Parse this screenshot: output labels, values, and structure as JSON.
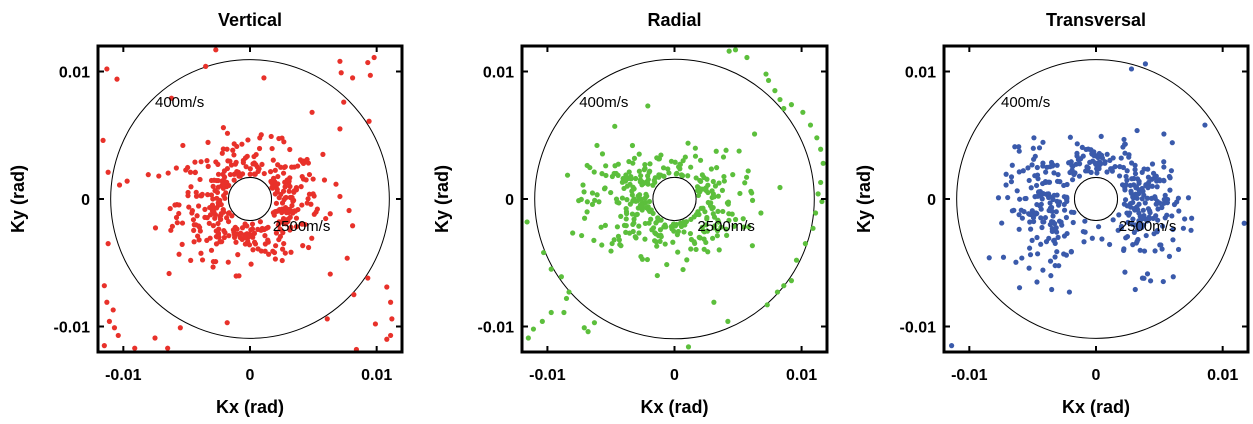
{
  "chart_data": [
    {
      "type": "scatter",
      "title": "Vertical",
      "xlabel": "Kx (rad)",
      "ylabel": "Ky (rad)",
      "xlim": [
        -0.012,
        0.012
      ],
      "ylim": [
        -0.012,
        0.012
      ],
      "xticks": [
        "-0.01",
        "0",
        "0.01"
      ],
      "yticks": [
        "0.01",
        "0",
        "-0.01"
      ],
      "grid": false,
      "color": "#e8312a",
      "circles": [
        {
          "radius": 0.011,
          "label": "400m/s"
        },
        {
          "radius": 0.0017,
          "label": "2500m/s"
        }
      ],
      "points": [
        [
          -0.0113,
          0.0102
        ],
        [
          -0.0105,
          0.0094
        ],
        [
          -0.0062,
          0.0079
        ],
        [
          -0.0035,
          0.0104
        ],
        [
          -0.0027,
          0.0117
        ],
        [
          0.0071,
          0.0108
        ],
        [
          0.0093,
          0.0107
        ],
        [
          0.0098,
          0.0111
        ],
        [
          0.0095,
          0.0097
        ],
        [
          0.0081,
          0.0095
        ],
        [
          0.0072,
          0.0099
        ],
        [
          0.0074,
          0.0076
        ],
        [
          0.0071,
          0.0055
        ],
        [
          0.0094,
          0.0061
        ],
        [
          0.0011,
          0.0095
        ],
        [
          -0.0116,
          0.0046
        ],
        [
          -0.0112,
          0.0021
        ],
        [
          -0.0103,
          0.0011
        ],
        [
          -0.0097,
          0.0014
        ],
        [
          -0.0112,
          -0.0035
        ],
        [
          -0.0115,
          -0.0068
        ],
        [
          -0.0113,
          -0.0081
        ],
        [
          -0.0108,
          -0.0087
        ],
        [
          -0.0111,
          -0.0096
        ],
        [
          -0.0107,
          -0.0101
        ],
        [
          -0.0104,
          -0.0107
        ],
        [
          -0.0115,
          -0.0115
        ],
        [
          -0.0075,
          -0.0109
        ],
        [
          -0.0091,
          -0.0117
        ],
        [
          -0.0065,
          -0.0117
        ],
        [
          -0.0055,
          -0.0101
        ],
        [
          -0.0018,
          -0.0097
        ],
        [
          0.0061,
          -0.0094
        ],
        [
          0.0082,
          -0.0075
        ],
        [
          0.0093,
          -0.0062
        ],
        [
          0.0108,
          -0.0069
        ],
        [
          0.0111,
          -0.0081
        ],
        [
          0.0112,
          -0.0094
        ],
        [
          0.0111,
          -0.0107
        ],
        [
          0.0108,
          -0.011
        ],
        [
          0.0099,
          -0.0098
        ],
        [
          0.0084,
          -0.0118
        ],
        [
          -0.0053,
          0.0042
        ],
        [
          -0.0072,
          0.0018
        ],
        [
          -0.0047,
          0.0021
        ],
        [
          0.0071,
          0.0002
        ],
        [
          0.0081,
          -0.0021
        ],
        [
          0.0018,
          -0.0041
        ],
        [
          -0.0021,
          0.0056
        ],
        [
          0.0049,
          0.0068
        ]
      ],
      "cluster": {
        "n": 380,
        "cx": 0.0,
        "cy": -0.0003,
        "rx": 0.0062,
        "ry": 0.0048,
        "exclusion_radius": 0.0017
      }
    },
    {
      "type": "scatter",
      "title": "Radial",
      "xlabel": "Kx (rad)",
      "ylabel": "Ky (rad)",
      "xlim": [
        -0.012,
        0.012
      ],
      "ylim": [
        -0.012,
        0.012
      ],
      "xticks": [
        "-0.01",
        "0",
        "0.01"
      ],
      "yticks": [
        "0.01",
        "0",
        "-0.01"
      ],
      "grid": false,
      "color": "#5cbf3c",
      "circles": [
        {
          "radius": 0.011,
          "label": "400m/s"
        },
        {
          "radius": 0.0017,
          "label": "2500m/s"
        }
      ],
      "points": [
        [
          0.0043,
          0.0116
        ],
        [
          0.0048,
          0.0117
        ],
        [
          0.0057,
          0.0111
        ],
        [
          0.0072,
          0.0098
        ],
        [
          0.0074,
          0.0093
        ],
        [
          0.0079,
          0.0085
        ],
        [
          0.0083,
          0.0078
        ],
        [
          0.0086,
          0.0071
        ],
        [
          0.0092,
          0.0074
        ],
        [
          0.0101,
          0.0068
        ],
        [
          0.0107,
          0.0058
        ],
        [
          0.0112,
          0.0048
        ],
        [
          0.0115,
          0.0039
        ],
        [
          0.0117,
          0.0028
        ],
        [
          0.0115,
          0.0013
        ],
        [
          0.0113,
          0.0004
        ],
        [
          0.0116,
          -0.0002
        ],
        [
          0.0111,
          -0.0011
        ],
        [
          0.0109,
          -0.0023
        ],
        [
          0.0103,
          -0.0035
        ],
        [
          0.0096,
          -0.0048
        ],
        [
          0.0092,
          -0.0064
        ],
        [
          0.0086,
          -0.0068
        ],
        [
          0.0073,
          -0.0083
        ],
        [
          0.0081,
          -0.0073
        ],
        [
          -0.0116,
          -0.0018
        ],
        [
          -0.0103,
          -0.0042
        ],
        [
          -0.0097,
          -0.0055
        ],
        [
          -0.0089,
          -0.0061
        ],
        [
          -0.0083,
          -0.0073
        ],
        [
          -0.0085,
          -0.0078
        ],
        [
          -0.0087,
          -0.0089
        ],
        [
          -0.0097,
          -0.0089
        ],
        [
          -0.0104,
          -0.0096
        ],
        [
          -0.0111,
          -0.0102
        ],
        [
          -0.0115,
          -0.0109
        ],
        [
          -0.0071,
          -0.0101
        ],
        [
          -0.0063,
          -0.0097
        ],
        [
          -0.0068,
          -0.0104
        ],
        [
          0.0011,
          -0.0116
        ],
        [
          0.0031,
          -0.0081
        ],
        [
          0.0042,
          -0.0096
        ],
        [
          -0.0047,
          0.0057
        ],
        [
          -0.0021,
          0.0073
        ],
        [
          0.0063,
          0.0051
        ],
        [
          0.0058,
          0.0022
        ],
        [
          0.0068,
          -0.0011
        ],
        [
          0.0083,
          0.0009
        ],
        [
          -0.0072,
          0.0011
        ],
        [
          -0.0061,
          0.0042
        ]
      ],
      "cluster": {
        "n": 320,
        "cx": -0.0008,
        "cy": -0.0003,
        "rx": 0.0064,
        "ry": 0.0044,
        "exclusion_radius": 0.0017
      }
    },
    {
      "type": "scatter",
      "title": "Transversal",
      "xlabel": "Kx (rad)",
      "ylabel": "Ky (rad)",
      "xlim": [
        -0.012,
        0.012
      ],
      "ylim": [
        -0.012,
        0.012
      ],
      "xticks": [
        "-0.01",
        "0",
        "0.01"
      ],
      "yticks": [
        "0.01",
        "0",
        "-0.01"
      ],
      "grid": false,
      "color": "#3a5aab",
      "circles": [
        {
          "radius": 0.011,
          "label": "400m/s"
        },
        {
          "radius": 0.0017,
          "label": "2500m/s"
        }
      ],
      "points": [
        [
          0.0028,
          0.0102
        ],
        [
          0.0039,
          0.0106
        ],
        [
          0.0086,
          0.0058
        ],
        [
          0.0117,
          -0.0019
        ],
        [
          -0.0114,
          -0.0115
        ],
        [
          -0.0077,
          0.0001
        ],
        [
          -0.0071,
          0.0011
        ],
        [
          0.0073,
          0.0001
        ],
        [
          0.0069,
          -0.0023
        ],
        [
          0.0061,
          -0.0061
        ],
        [
          -0.0035,
          -0.0071
        ],
        [
          -0.0021,
          -0.0073
        ],
        [
          0.0031,
          -0.0071
        ],
        [
          -0.0061,
          0.0041
        ],
        [
          -0.0049,
          0.0048
        ]
      ],
      "clusters": [
        {
          "n": 170,
          "cx": -0.0038,
          "cy": -0.0008,
          "rx": 0.0036,
          "ry": 0.0048
        },
        {
          "n": 170,
          "cx": 0.0038,
          "cy": -0.0008,
          "rx": 0.003,
          "ry": 0.005
        },
        {
          "n": 70,
          "cx": 0.0,
          "cy": 0.0028,
          "rx": 0.003,
          "ry": 0.0018
        }
      ],
      "exclusion_radius": 0.0017
    }
  ]
}
